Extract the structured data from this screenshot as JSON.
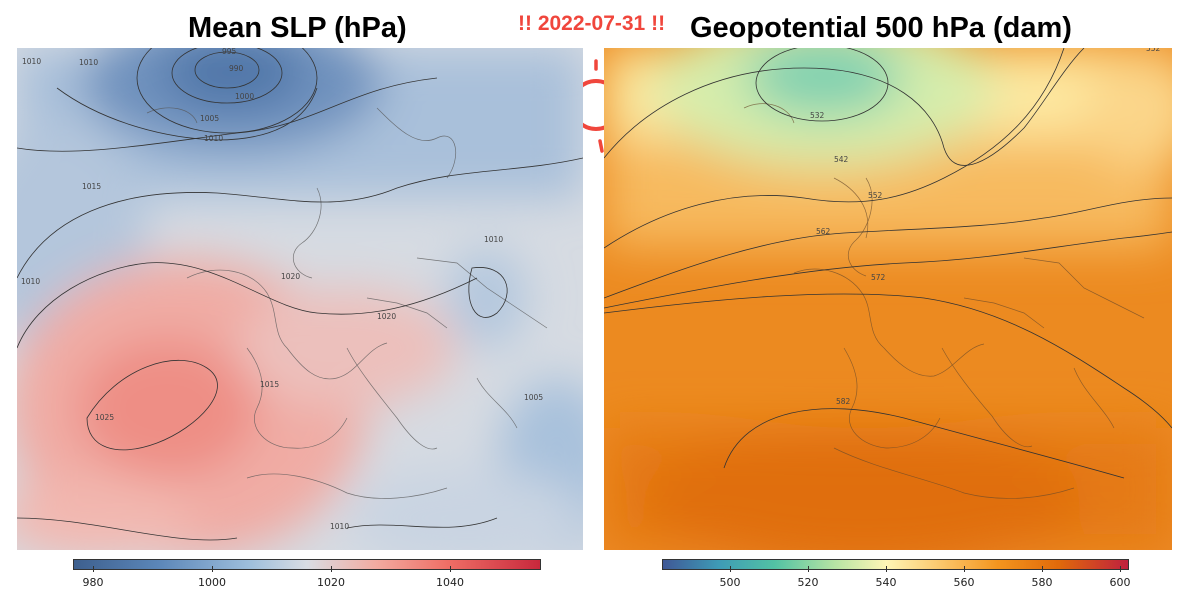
{
  "titles": {
    "left": "Mean SLP (hPa)",
    "right": "Geopotential 500 hPa (dam)",
    "date": "!! 2022-07-31 !!"
  },
  "left_panel": {
    "contour_labels": [
      "995",
      "990",
      "1000",
      "1005",
      "1010",
      "1010",
      "1015",
      "1020",
      "1020",
      "1025",
      "1010",
      "1015",
      "1010",
      "1005",
      "1010",
      "1010"
    ],
    "colorbar_ticks": [
      "980",
      "1000",
      "1020",
      "1040"
    ]
  },
  "right_panel": {
    "contour_labels": [
      "532",
      "542",
      "552",
      "562",
      "572",
      "582",
      "552"
    ],
    "colorbar_ticks": [
      "500",
      "520",
      "540",
      "560",
      "580",
      "600"
    ]
  },
  "colors": {
    "date_text": "#f0463c",
    "sun_icon": "#f0463c"
  }
}
